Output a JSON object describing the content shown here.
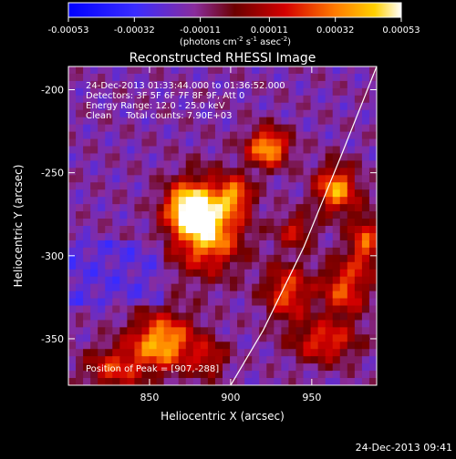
{
  "chart_data": {
    "type": "heatmap",
    "title": "Reconstructed RHESSI Image",
    "xlabel": "Heliocentric X (arcsec)",
    "ylabel": "Heliocentric Y (arcsec)",
    "xlim": [
      800,
      990
    ],
    "ylim": [
      -378,
      -186
    ],
    "x_ticks": [
      850,
      900,
      950
    ],
    "y_ticks": [
      -200,
      -250,
      -300,
      -350
    ],
    "colorbar": {
      "min": -0.00053,
      "max": 0.00053,
      "tick_values": [
        -0.00053,
        -0.00032,
        -0.00011,
        0.00011,
        0.00032,
        0.00053
      ],
      "tick_labels": [
        "-0.00053",
        "-0.00032",
        "-0.00011",
        "0.00011",
        "0.00032",
        "0.00053"
      ],
      "unit_prefix": "(photons cm",
      "unit_sup1": "-2",
      "unit_mid": " s",
      "unit_sup2": "-1",
      "unit_mid2": " asec",
      "unit_sup3": "-2",
      "unit_suffix": ")"
    },
    "annotations": [
      "24-Dec-2013 01:33:44.000 to 01:36:52.000",
      "Detectors: 3F 5F 6F 7F 8F 9F, Att 0",
      "Energy Range: 12.0 - 25.0 keV",
      "Clean     Total counts: 7.90E+03"
    ],
    "peak_label": "Position of Peak = [907,-288]",
    "peak": [
      907,
      -288
    ],
    "sources": [
      {
        "x": 885,
        "y": -282,
        "amp": 1.0,
        "sx": 15,
        "sy": 18
      },
      {
        "x": 873,
        "y": -270,
        "amp": 0.7,
        "sx": 9,
        "sy": 9
      },
      {
        "x": 903,
        "y": -263,
        "amp": 0.55,
        "sx": 7,
        "sy": 7
      },
      {
        "x": 923,
        "y": -235,
        "amp": 0.85,
        "sx": 9,
        "sy": 8
      },
      {
        "x": 965,
        "y": -260,
        "amp": 0.8,
        "sx": 9,
        "sy": 10
      },
      {
        "x": 983,
        "y": -292,
        "amp": 0.6,
        "sx": 7,
        "sy": 12
      },
      {
        "x": 940,
        "y": -285,
        "amp": 0.45,
        "sx": 8,
        "sy": 7
      },
      {
        "x": 935,
        "y": -322,
        "amp": 0.6,
        "sx": 10,
        "sy": 12
      },
      {
        "x": 970,
        "y": -320,
        "amp": 0.6,
        "sx": 10,
        "sy": 12
      },
      {
        "x": 958,
        "y": -352,
        "amp": 0.55,
        "sx": 14,
        "sy": 9
      },
      {
        "x": 858,
        "y": -352,
        "amp": 0.85,
        "sx": 14,
        "sy": 12
      },
      {
        "x": 828,
        "y": -368,
        "amp": 0.5,
        "sx": 13,
        "sy": 9
      },
      {
        "x": 887,
        "y": -362,
        "amp": 0.4,
        "sx": 8,
        "sy": 8
      }
    ],
    "limb_curve": [
      [
        990,
        -186
      ],
      [
        968,
        -240
      ],
      [
        945,
        -295
      ],
      [
        920,
        -345
      ],
      [
        900,
        -378
      ]
    ]
  },
  "footer": {
    "timestamp": "24-Dec-2013 09:41"
  }
}
